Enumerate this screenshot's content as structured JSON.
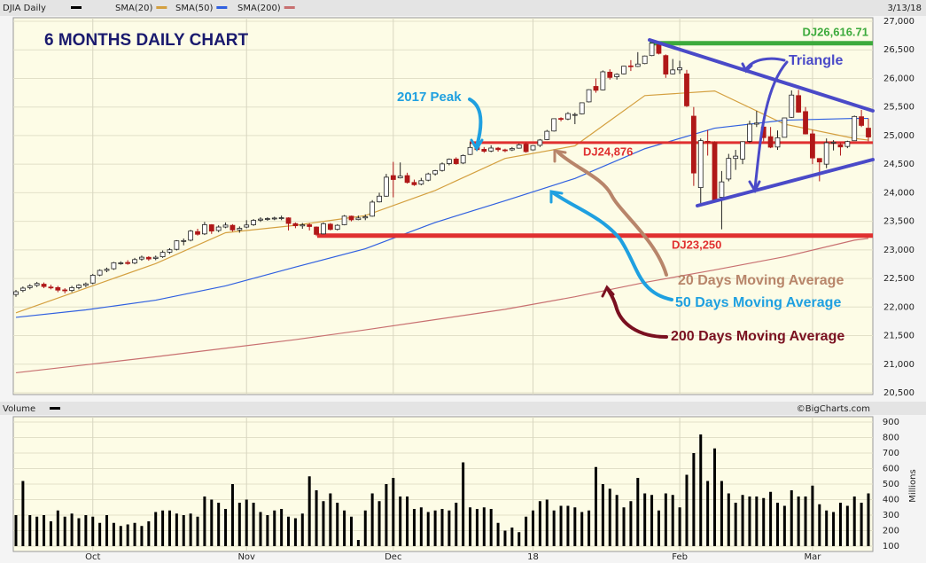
{
  "chart_data": [
    {
      "type": "candlestick",
      "symbol": "DJIA Daily",
      "date": "3/13/18",
      "title": "6 MONTHS DAILY CHART",
      "credit": "©BigCharts.com",
      "up_color": "#ffffff",
      "down_color": "#b01818",
      "open": [
        22220,
        22290,
        22340,
        22380,
        22400,
        22350,
        22340,
        22300,
        22290,
        22340,
        22380,
        22420,
        22560,
        22640,
        22670,
        22770,
        22780,
        22770,
        22840,
        22870,
        22850,
        22880,
        22960,
        23010,
        23150,
        23170,
        23320,
        23280,
        23440,
        23340,
        23400,
        23430,
        23350,
        23400,
        23440,
        23520,
        23540,
        23550,
        23560,
        23560,
        23460,
        23420,
        23440,
        23400,
        23280,
        23450,
        23360,
        23440,
        23590,
        23530,
        23560,
        23590,
        23840,
        23940,
        24300,
        24260,
        24300,
        24180,
        24150,
        24220,
        24330,
        24390,
        24510,
        24590,
        24520,
        24670,
        24800,
        24760,
        24730,
        24780,
        24750,
        24750,
        24780,
        24850,
        24750,
        24830,
        24930,
        25080,
        25300,
        25290,
        25360,
        25380,
        25590,
        25860,
        25800,
        26110,
        26030,
        26080,
        26220,
        26210,
        26260,
        26400,
        26590,
        26400,
        26080,
        26150,
        26080,
        25340,
        24090,
        24900,
        24880,
        23920,
        24240,
        24600,
        24590,
        24900,
        25200,
        25150,
        24980,
        24800,
        24970,
        25320,
        25700,
        25420,
        25030,
        24600,
        24500,
        24880,
        24840,
        24810,
        24910,
        25330,
        25130
      ],
      "high": [
        22300,
        22360,
        22400,
        22440,
        22430,
        22390,
        22370,
        22330,
        22370,
        22400,
        22430,
        22580,
        22660,
        22690,
        22790,
        22800,
        22820,
        22860,
        22900,
        22890,
        22900,
        22990,
        23030,
        23170,
        23200,
        23350,
        23370,
        23490,
        23450,
        23430,
        23480,
        23450,
        23410,
        23520,
        23540,
        23570,
        23570,
        23580,
        23600,
        23570,
        23480,
        23470,
        23470,
        23410,
        23480,
        23470,
        23450,
        23610,
        23600,
        23600,
        23620,
        23870,
        24000,
        24330,
        24540,
        24530,
        24350,
        24230,
        24260,
        24350,
        24400,
        24530,
        24600,
        24620,
        24670,
        24880,
        24830,
        24800,
        24830,
        24800,
        24770,
        24800,
        24860,
        24880,
        24830,
        24940,
        25100,
        25300,
        25320,
        25410,
        25400,
        25580,
        25810,
        26000,
        26140,
        26160,
        26090,
        26220,
        26320,
        26460,
        26400,
        26620,
        26610,
        26420,
        26340,
        26310,
        26150,
        25500,
        24950,
        25100,
        24900,
        24380,
        24680,
        24750,
        24900,
        25260,
        25430,
        25290,
        25150,
        25090,
        25310,
        25790,
        25800,
        25500,
        25100,
        24600,
        24950,
        24920,
        24880,
        24910,
        25350,
        25450,
        25300
      ],
      "low": [
        22180,
        22260,
        22310,
        22350,
        22330,
        22310,
        22260,
        22240,
        22260,
        22310,
        22350,
        22400,
        22540,
        22610,
        22650,
        22740,
        22740,
        22750,
        22810,
        22810,
        22820,
        22860,
        22930,
        22990,
        23080,
        23150,
        23250,
        23260,
        23280,
        23310,
        23380,
        23320,
        23300,
        23380,
        23420,
        23490,
        23510,
        23520,
        23520,
        23340,
        23380,
        23370,
        23340,
        23240,
        23270,
        23340,
        23340,
        23430,
        23500,
        23520,
        23520,
        23580,
        23830,
        23930,
        23920,
        24250,
        24160,
        24120,
        24130,
        24200,
        24300,
        24370,
        24480,
        24490,
        24500,
        24660,
        24730,
        24700,
        24710,
        24720,
        24710,
        24730,
        24770,
        24700,
        24740,
        24800,
        24920,
        25070,
        25250,
        25270,
        25200,
        25370,
        25580,
        25750,
        25790,
        25980,
        25980,
        26070,
        26130,
        26200,
        26250,
        26390,
        26420,
        26010,
        26070,
        26080,
        25500,
        24120,
        23780,
        24650,
        23850,
        23360,
        24200,
        24400,
        24500,
        24870,
        25150,
        24900,
        24780,
        24750,
        24970,
        25310,
        25400,
        25020,
        24500,
        24200,
        24430,
        24740,
        24650,
        24780,
        24930,
        25150,
        24900
      ],
      "close": [
        22268,
        22331,
        22370,
        22412,
        22359,
        22349,
        22296,
        22284,
        22340,
        22381,
        22405,
        22557,
        22641,
        22661,
        22775,
        22773,
        22761,
        22830,
        22872,
        22841,
        22871,
        22957,
        23002,
        23158,
        23163,
        23329,
        23273,
        23441,
        23329,
        23400,
        23434,
        23349,
        23377,
        23435,
        23517,
        23539,
        23548,
        23557,
        23563,
        23462,
        23422,
        23439,
        23409,
        23271,
        23458,
        23358,
        23430,
        23590,
        23526,
        23558,
        23580,
        23836,
        23940,
        24272,
        24231,
        24290,
        24180,
        24140,
        24211,
        24329,
        24386,
        24504,
        24585,
        24509,
        24651,
        24792,
        24754,
        24726,
        24782,
        24754,
        24746,
        24774,
        24838,
        24719,
        24824,
        24922,
        25075,
        25295,
        25283,
        25385,
        25369,
        25574,
        25803,
        25792,
        26116,
        26017,
        26071,
        26214,
        26210,
        26252,
        26392,
        26616,
        26439,
        26076,
        26149,
        26186,
        25520,
        24345,
        24912,
        24893,
        23860,
        24190,
        24601,
        24640,
        24893,
        25200,
        25219,
        24964,
        24797,
        24962,
        25309,
        25709,
        25410,
        25029,
        24608,
        24538,
        24874,
        24884,
        24801,
        24895,
        25335,
        25178,
        24975
      ],
      "indicators": [
        {
          "name": "SMA(20)",
          "color": "#d4a040",
          "x": [
            0,
            10,
            20,
            30,
            40,
            50,
            60,
            70,
            80,
            90,
            100,
            110,
            120,
            122
          ],
          "values": [
            21900,
            22330,
            22760,
            23300,
            23430,
            23600,
            24040,
            24600,
            24820,
            25700,
            25780,
            25200,
            24950,
            24920
          ]
        },
        {
          "name": "SMA(50)",
          "color": "#3060e0",
          "x": [
            0,
            10,
            20,
            30,
            40,
            50,
            60,
            70,
            80,
            90,
            100,
            110,
            120,
            122
          ],
          "values": [
            21820,
            21950,
            22120,
            22370,
            22700,
            23020,
            23480,
            23860,
            24250,
            24770,
            25130,
            25270,
            25300,
            25300
          ]
        },
        {
          "name": "SMA(200)",
          "color": "#c87070",
          "x": [
            0,
            10,
            20,
            30,
            40,
            50,
            60,
            70,
            80,
            90,
            100,
            110,
            120,
            122
          ],
          "values": [
            20850,
            20990,
            21130,
            21280,
            21430,
            21600,
            21780,
            21960,
            22180,
            22430,
            22650,
            22880,
            23170,
            23200
          ]
        }
      ],
      "levels": [
        {
          "value": 26616.71,
          "label": "DJ26,616.71",
          "color": "#3caa3c"
        },
        {
          "value": 24876,
          "label": "DJ24,876",
          "color": "#e03030"
        },
        {
          "value": 23250,
          "label": "DJ23,250",
          "color": "#e03030"
        }
      ],
      "annotations": [
        "2017 Peak",
        "Triangle",
        "20 Days Moving Average",
        "50 Days Moving Average",
        "200 Days Moving Average"
      ],
      "ylim": [
        20500,
        27000
      ],
      "yticks": [
        {
          "value": 20500,
          "label": "20,500"
        },
        {
          "value": 21000,
          "label": "21,000"
        },
        {
          "value": 21500,
          "label": "21,500"
        },
        {
          "value": 22000,
          "label": "22,000"
        },
        {
          "value": 22500,
          "label": "22,500"
        },
        {
          "value": 23000,
          "label": "23,000"
        },
        {
          "value": 23500,
          "label": "23,500"
        },
        {
          "value": 24000,
          "label": "24,000"
        },
        {
          "value": 24500,
          "label": "24,500"
        },
        {
          "value": 25000,
          "label": "25,000"
        },
        {
          "value": 25500,
          "label": "25,500"
        },
        {
          "value": 26000,
          "label": "26,000"
        },
        {
          "value": 26500,
          "label": "26,500"
        },
        {
          "value": 27000,
          "label": "27,000"
        }
      ],
      "grid": true
    },
    {
      "type": "bar",
      "title": "Volume",
      "y_label": "Millions",
      "color": "#000000",
      "values": [
        300,
        520,
        300,
        290,
        300,
        260,
        330,
        290,
        310,
        280,
        300,
        290,
        250,
        300,
        250,
        230,
        240,
        250,
        230,
        260,
        320,
        330,
        330,
        310,
        300,
        310,
        290,
        420,
        400,
        380,
        340,
        500,
        380,
        400,
        380,
        320,
        300,
        330,
        340,
        290,
        280,
        310,
        550,
        460,
        390,
        440,
        380,
        330,
        290,
        140,
        330,
        440,
        390,
        500,
        540,
        420,
        420,
        340,
        350,
        320,
        330,
        340,
        330,
        380,
        640,
        350,
        340,
        350,
        340,
        250,
        200,
        220,
        190,
        290,
        330,
        390,
        400,
        330,
        360,
        360,
        350,
        320,
        330,
        610,
        500,
        470,
        430,
        350,
        390,
        540,
        440,
        430,
        330,
        440,
        430,
        350,
        560,
        700,
        820,
        520,
        730,
        520,
        440,
        380,
        430,
        420,
        420,
        410,
        450,
        380,
        360,
        460,
        420,
        420,
        490,
        370,
        330,
        320,
        380,
        360,
        420,
        380,
        440
      ],
      "ylim": [
        100,
        900
      ],
      "yticks": [
        100,
        200,
        300,
        400,
        500,
        600,
        700,
        800,
        900
      ],
      "xticks": [
        {
          "value": 11,
          "label": "Oct"
        },
        {
          "value": 33,
          "label": "Nov"
        },
        {
          "value": 54,
          "label": "Dec"
        },
        {
          "value": 74,
          "label": "18"
        },
        {
          "value": 95,
          "label": "Feb"
        },
        {
          "value": 114,
          "label": "Mar"
        }
      ],
      "grid": true
    }
  ]
}
